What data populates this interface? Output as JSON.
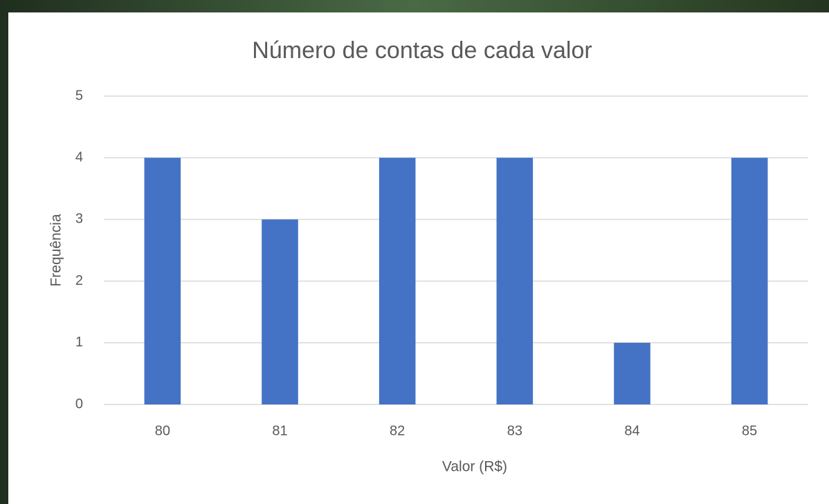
{
  "chart_data": {
    "type": "bar",
    "title": "Número de contas de cada valor",
    "x_label": "Valor (R$)",
    "y_label": "Frequência",
    "categories": [
      "80",
      "81",
      "82",
      "83",
      "84",
      "85"
    ],
    "values": [
      4,
      3,
      4,
      4,
      1,
      4
    ],
    "color": "#4472c4",
    "ylim": [
      0,
      5
    ],
    "yticks": [
      0,
      1,
      2,
      3,
      4,
      5
    ],
    "grid": true
  }
}
